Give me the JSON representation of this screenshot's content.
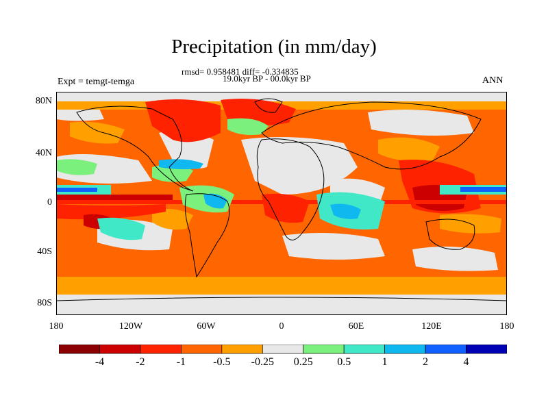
{
  "title": "Precipitation (in mm/day)",
  "stats_text": "rmsd= 0.958481 diff= -0.334835",
  "period_text": "19.0kyr BP - 00.0kyr BP",
  "experiment_text": "Expt = temgt-temga",
  "season": "ANN",
  "lat_labels": [
    "80N",
    "40N",
    "0",
    "40S",
    "80S"
  ],
  "lon_labels": [
    "180",
    "120W",
    "60W",
    "0",
    "60E",
    "120E",
    "180"
  ],
  "colorbar": {
    "colors": [
      "#8b0000",
      "#cc0000",
      "#ff2200",
      "#ff6600",
      "#ffa000",
      "#e8e8e8",
      "#7cf07c",
      "#40e8c8",
      "#10b8f0",
      "#1060ff",
      "#0000b4"
    ],
    "labels": [
      "-4",
      "-2",
      "-1",
      "-0.5",
      "-0.25",
      "0.25",
      "0.5",
      "1",
      "2",
      "4"
    ]
  }
}
